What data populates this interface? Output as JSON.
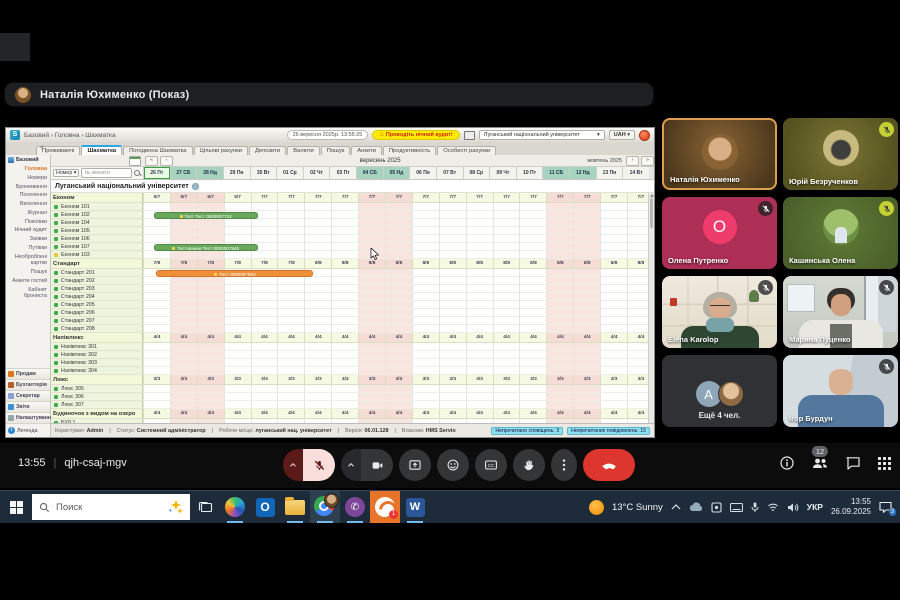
{
  "meet": {
    "presenter_banner": "Наталія Юхименко (Показ)",
    "clock": "13:55",
    "meeting_code": "qjh-csaj-mgv",
    "people_count_badge": "12",
    "tiles": [
      {
        "name": "Наталія Юхименко"
      },
      {
        "name": "Юрій Безрученков"
      },
      {
        "name": "Олена Путренко",
        "letter": "O"
      },
      {
        "name": "Кашинська Олена"
      },
      {
        "name": "Elena Karolop"
      },
      {
        "name": "Марина Луценко"
      },
      {
        "name": "Ещё 4 чел.",
        "letter": "A"
      },
      {
        "name": "Ігор Бурдун"
      }
    ]
  },
  "servio": {
    "breadcrumb": "Базовий › Головна › Шахматка",
    "logo_letter": "S",
    "datetime": "26 вересня 2025р.  13:55:25",
    "audit_warning": "Проводіть нічний аудит!",
    "hotel_selector": "Луганський національний університет",
    "currency": "UAH",
    "tabs": [
      "Проживаючі",
      "Шахматка",
      "Погодинна Шахматка",
      "Цільові рахунки",
      "Депозити",
      "Валюти",
      "Пошук",
      "Анкети",
      "Продуктивність",
      "Особисті рахунки"
    ],
    "active_tab": "Шахматка",
    "month_label": "вересень 2025",
    "next_month_label": "жовтень 2025",
    "room_filter_label": "Номер ▾",
    "room_search_placeholder": "№ кімнати",
    "building_title": "Луганський національний університет",
    "sidebar": {
      "title": "Базовий",
      "items": [
        "Головна",
        "Номери",
        "Бронювання",
        "Поселення",
        "Виселення",
        "Журнал",
        "Покоївки",
        "Нічний аудит",
        "Заявки",
        "Путівки",
        "Необроблені картки",
        "Пошук",
        "Анкети гостей",
        "Кабінет брониста"
      ],
      "active_item": "Головна",
      "groups": [
        {
          "label": "Продаж",
          "color": "#e0761c"
        },
        {
          "label": "Бухгалтерія",
          "color": "#b3622a"
        },
        {
          "label": "Секретар",
          "color": "#8a9fd6"
        },
        {
          "label": "Звіти",
          "color": "#3f8fd4"
        },
        {
          "label": "Налаштування",
          "color": "#8fa6ad"
        }
      ],
      "legend_label": "Легенда"
    },
    "dates": [
      {
        "label": "26 Пт",
        "today": true
      },
      {
        "label": "27 СБ",
        "weekend": true
      },
      {
        "label": "28 Нд",
        "weekend": true
      },
      {
        "label": "29 Пн"
      },
      {
        "label": "30 Вт"
      },
      {
        "label": "01 Ср"
      },
      {
        "label": "02 Чт"
      },
      {
        "label": "03 Пт"
      },
      {
        "label": "04 СБ",
        "weekend": true
      },
      {
        "label": "05 Нд",
        "weekend": true
      },
      {
        "label": "06 Пн"
      },
      {
        "label": "07 Вт"
      },
      {
        "label": "08 Ср"
      },
      {
        "label": "09 Чт"
      },
      {
        "label": "10 Пт"
      },
      {
        "label": "11 СБ",
        "weekend": true
      },
      {
        "label": "12 Нд",
        "weekend": true
      },
      {
        "label": "13 Пн"
      },
      {
        "label": "14 Вт"
      }
    ],
    "categories": [
      {
        "name": "Економ",
        "counts": [
          "5/7",
          "5/7",
          "5/7",
          "5/7",
          "7/7",
          "7/7",
          "7/7",
          "7/7",
          "7/7",
          "7/7",
          "7/7",
          "7/7",
          "7/7",
          "7/7",
          "7/7",
          "7/7",
          "7/7",
          "7/7",
          "7/7"
        ],
        "rooms": [
          {
            "label": "Економ 101",
            "status": "green"
          },
          {
            "label": "Економ 102",
            "status": "green"
          },
          {
            "label": "Економ 104",
            "status": "green"
          },
          {
            "label": "Економ 105",
            "status": "green"
          },
          {
            "label": "Економ 106",
            "status": "green"
          },
          {
            "label": "Економ 107",
            "status": "green"
          },
          {
            "label": "Економ 103",
            "status": "yellow"
          }
        ]
      },
      {
        "name": "Стандарт",
        "counts": [
          "7/8",
          "7/8",
          "7/8",
          "7/8",
          "7/8",
          "7/8",
          "8/8",
          "8/8",
          "8/8",
          "8/8",
          "8/8",
          "8/8",
          "8/8",
          "8/8",
          "8/8",
          "8/8",
          "8/8",
          "8/8",
          "8/8"
        ],
        "rooms": [
          {
            "label": "Стандарт 201",
            "status": "green"
          },
          {
            "label": "Стандарт 202",
            "status": "green"
          },
          {
            "label": "Стандарт 203",
            "status": "green"
          },
          {
            "label": "Стандарт 204",
            "status": "green"
          },
          {
            "label": "Стандарт 205",
            "status": "green"
          },
          {
            "label": "Стандарт 206",
            "status": "green"
          },
          {
            "label": "Стандарт 207",
            "status": "green"
          },
          {
            "label": "Стандарт 208",
            "status": "green"
          }
        ]
      },
      {
        "name": "Напівлюкс",
        "counts": [
          "4/4",
          "4/4",
          "4/4",
          "4/4",
          "4/4",
          "4/4",
          "4/4",
          "4/4",
          "4/4",
          "4/4",
          "4/4",
          "4/4",
          "4/4",
          "4/4",
          "4/4",
          "4/4",
          "4/4",
          "4/4",
          "4/4"
        ],
        "rooms": [
          {
            "label": "Напівлюкс 301",
            "status": "green"
          },
          {
            "label": "Напівлюкс 302",
            "status": "green"
          },
          {
            "label": "Напівлюкс 303",
            "status": "green"
          },
          {
            "label": "Напівлюкс 304",
            "status": "green"
          }
        ]
      },
      {
        "name": "Люкс",
        "counts": [
          "3/3",
          "3/3",
          "3/3",
          "3/3",
          "3/3",
          "3/3",
          "3/3",
          "3/3",
          "3/3",
          "3/3",
          "3/3",
          "3/3",
          "3/3",
          "3/3",
          "3/3",
          "3/3",
          "3/3",
          "3/3",
          "3/3"
        ],
        "rooms": [
          {
            "label": "Люкс 305",
            "status": "green"
          },
          {
            "label": "Люкс 306",
            "status": "green"
          },
          {
            "label": "Люкс 307",
            "status": "green"
          }
        ]
      },
      {
        "name": "Будиночок з видом на озеро",
        "counts": [
          "4/4",
          "4/4",
          "4/4",
          "4/4",
          "4/4",
          "4/4",
          "4/4",
          "4/4",
          "4/4",
          "4/4",
          "4/4",
          "4/4",
          "4/4",
          "4/4",
          "4/4",
          "4/4",
          "4/4",
          "4/4",
          "4/4"
        ],
        "rooms": [
          {
            "label": "БУД 1",
            "status": "green"
          }
        ]
      }
    ],
    "bookings": [
      {
        "room": "Економ 102",
        "label": "Тест Тест 0000007724",
        "color": "green",
        "start": 0.4,
        "end": 4.3
      },
      {
        "room": "Економ 107",
        "label": "Тестування Тест 0000007946",
        "color": "green",
        "start": 0.4,
        "end": 4.3
      },
      {
        "room": "Стандарт 201",
        "label": "Тест 0000007953",
        "color": "orange",
        "start": 0.5,
        "end": 6.4
      }
    ],
    "statusbar": {
      "items": [
        "Користувач: Admin",
        "Статус: Системний адміністратор",
        "Робоче місце: луганський нац. університет",
        "Версія: 06.01.128",
        "Власник: HMS Servio"
      ],
      "chips": [
        "Непрочитано сповіщень: 3",
        "Непрочитаних повідомлень: 15"
      ]
    }
  },
  "taskbar": {
    "search_placeholder": "Поиск",
    "weather": "13°C Sunny",
    "language": "УКР",
    "time": "13:55",
    "date": "26.09.2025",
    "notification_badge": "3"
  }
}
